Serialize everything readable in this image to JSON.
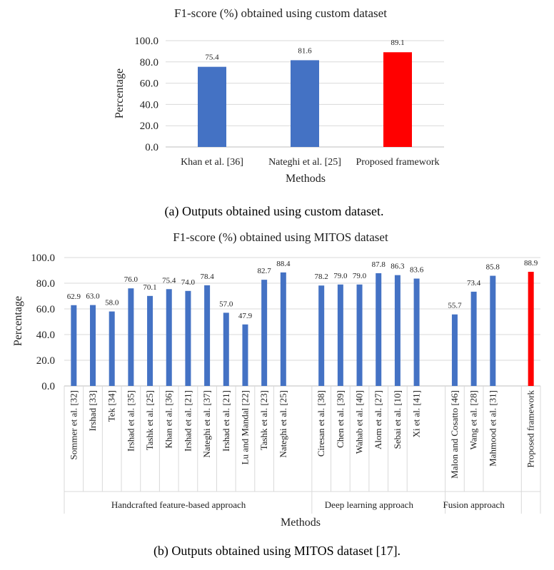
{
  "colors": {
    "bar": "#4472C4",
    "highlight": "#FF0000",
    "grid": "#D9D9D9",
    "axis": "#BFBFBF"
  },
  "chart_data": [
    {
      "type": "bar",
      "title": "F1-score (%) obtained using custom dataset",
      "xlabel": "Methods",
      "ylabel": "Percentage",
      "ylim": [
        0,
        100
      ],
      "yticks": [
        "0.0",
        "20.0",
        "40.0",
        "60.0",
        "80.0",
        "100.0"
      ],
      "grid": true,
      "categories": [
        "Khan et al. [36]",
        "Nateghi et al. [25]",
        "Proposed framework"
      ],
      "values": [
        75.4,
        81.6,
        89.1
      ],
      "value_labels": [
        "75.4",
        "81.6",
        "89.1"
      ],
      "highlight_index": 2,
      "caption": "(a)   Outputs obtained using custom dataset."
    },
    {
      "type": "bar",
      "title": "F1-score (%) obtained using MITOS dataset",
      "xlabel": "Methods",
      "ylabel": "Percentage",
      "ylim": [
        0,
        100
      ],
      "yticks": [
        "0.0",
        "20.0",
        "40.0",
        "60.0",
        "80.0",
        "100.0"
      ],
      "grid": true,
      "categories": [
        "Sommer et al. [32]",
        "Irshad [33]",
        "Tek [34]",
        "Irshad et al. [35]",
        "Tashk et al. [25]",
        "Khan et al. [36]",
        "Irshad et al. [21]",
        "Nateghi et al. [37]",
        "Irshad et al. [21]",
        "Lu and Mandal [22]",
        "Tashk et al. [23]",
        "Nateghi et al. [25]",
        "Ciresan et al. [38]",
        "Chen et al. [39]",
        "Wahab et al. [40]",
        "Alom et al. [27]",
        "Sebai et al. [10]",
        "Xi et al. [41]",
        "Malon and Cosatto [46]",
        "Wang et al. [28]",
        "Mahmood et al. [31]",
        "Proposed framework"
      ],
      "values": [
        62.9,
        63.0,
        58.0,
        76.0,
        70.1,
        75.4,
        74.0,
        78.4,
        57.0,
        47.9,
        82.7,
        88.4,
        78.2,
        79.0,
        79.0,
        87.8,
        86.3,
        83.6,
        55.7,
        73.4,
        85.8,
        88.9
      ],
      "value_labels": [
        "62.9",
        "63.0",
        "58.0",
        "76.0",
        "70.1",
        "75.4",
        "74.0",
        "78.4",
        "57.0",
        "47.9",
        "82.7",
        "88.4",
        "78.2",
        "79.0",
        "79.0",
        "87.8",
        "86.3",
        "83.6",
        "55.7",
        "73.4",
        "85.8",
        "88.9"
      ],
      "groups": [
        {
          "name": "Handcrafted feature-based approach",
          "start": 0,
          "end": 11
        },
        {
          "name": "Deep learning approach",
          "start": 12,
          "end": 17
        },
        {
          "name": "Fusion approach",
          "start": 18,
          "end": 20
        }
      ],
      "highlight_index": 21,
      "caption": "(b)   Outputs obtained using MITOS dataset [17]."
    }
  ]
}
